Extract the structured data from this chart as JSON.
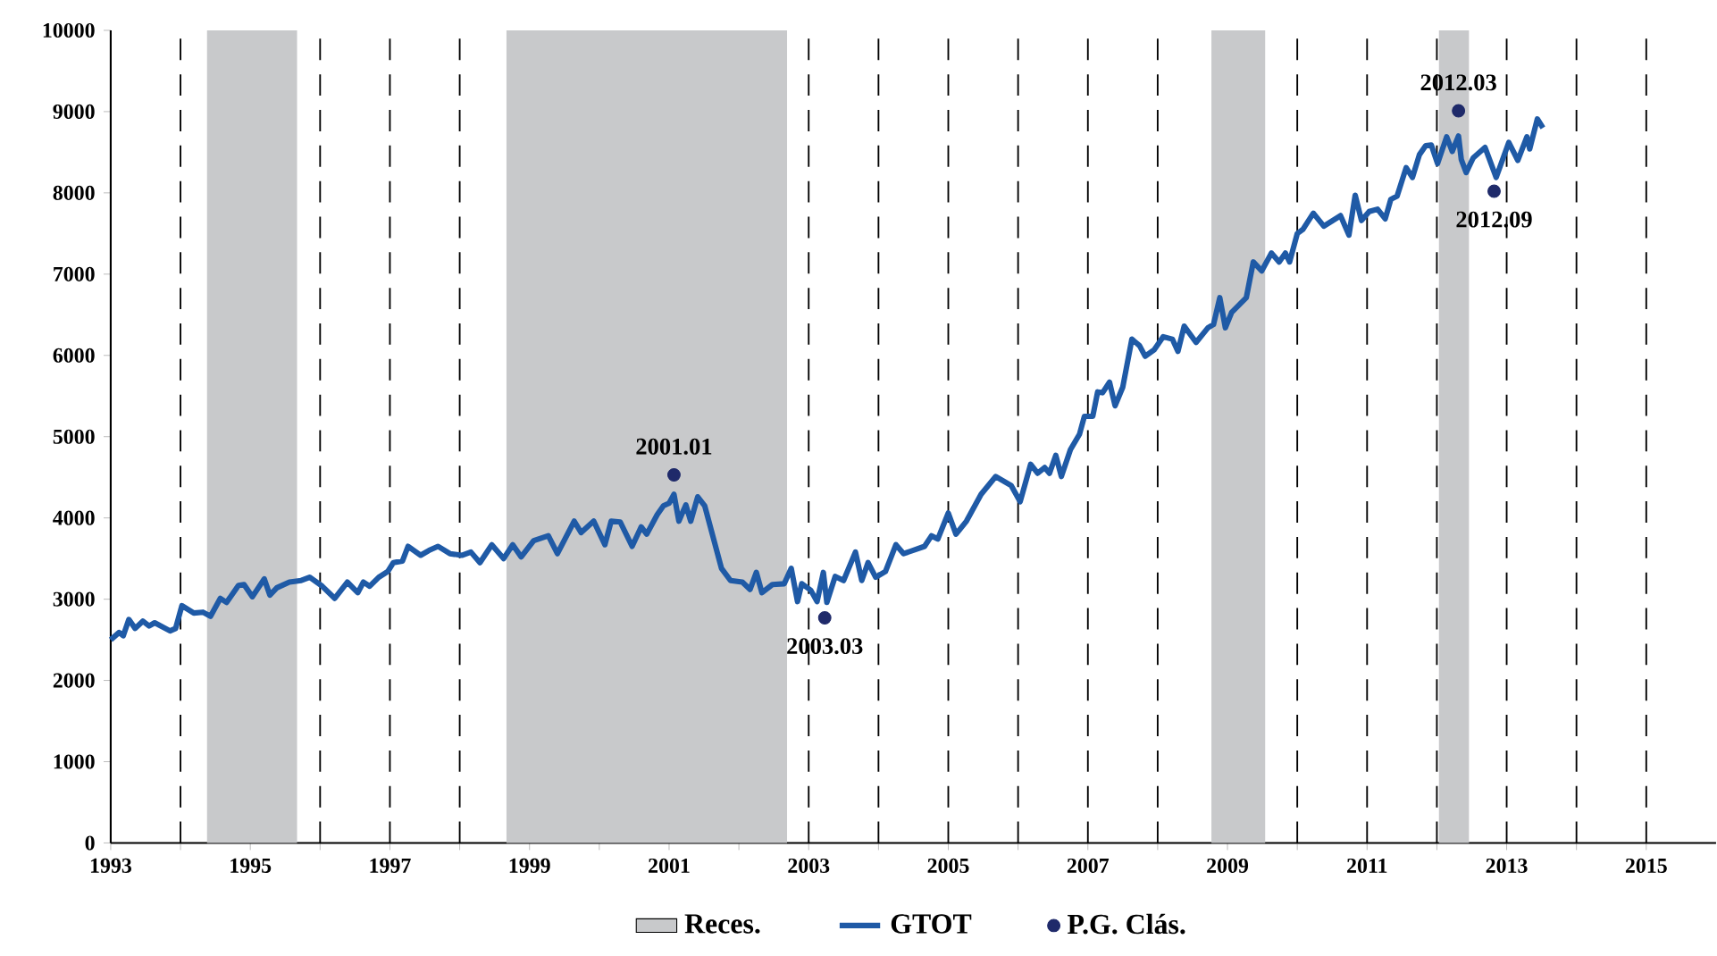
{
  "chart_data": {
    "type": "line",
    "xlim": [
      1993,
      2016
    ],
    "ylim": [
      0,
      10000
    ],
    "xticks": [
      1993,
      {
        "value": 1994,
        "label": null
      },
      1995,
      {
        "value": 1996,
        "label": null
      },
      1997,
      {
        "value": 1998,
        "label": null
      },
      1999,
      {
        "value": 2000,
        "label": null
      },
      2001,
      {
        "value": 2002,
        "label": null
      },
      2003,
      {
        "value": 2004,
        "label": null
      },
      2005,
      {
        "value": 2006,
        "label": null
      },
      2007,
      {
        "value": 2008,
        "label": null
      },
      2009,
      {
        "value": 2010,
        "label": null
      },
      2011,
      {
        "value": 2012,
        "label": null
      },
      2013,
      {
        "value": 2014,
        "label": null
      },
      2015
    ],
    "yticks": [
      0,
      1000,
      2000,
      3000,
      4000,
      5000,
      6000,
      7000,
      8000,
      9000,
      10000
    ],
    "grid": "x",
    "legend": "bottom",
    "bands": [
      {
        "axis": "x",
        "from": 1994.38,
        "to": 1995.67,
        "label": "Reces.",
        "color": "#c8c9cb"
      },
      {
        "axis": "x",
        "from": 1998.67,
        "to": 2002.69,
        "color": "#c8c9cb"
      },
      {
        "axis": "x",
        "from": 2008.77,
        "to": 2009.54,
        "color": "#c8c9cb"
      },
      {
        "axis": "x",
        "from": 2012.03,
        "to": 2012.46,
        "color": "#c8c9cb"
      }
    ],
    "series": [
      {
        "name": "GTOT",
        "color": "#1f5aa6",
        "x": [
          1993.0,
          1993.12,
          1993.18,
          1993.26,
          1993.35,
          1993.46,
          1993.55,
          1993.63,
          1993.85,
          1993.93,
          1994.02,
          1994.19,
          1994.32,
          1994.43,
          1994.57,
          1994.66,
          1994.83,
          1994.91,
          1995.03,
          1995.2,
          1995.28,
          1995.38,
          1995.56,
          1995.73,
          1995.85,
          1996.03,
          1996.21,
          1996.39,
          1996.54,
          1996.62,
          1996.71,
          1996.84,
          1996.97,
          1997.05,
          1997.18,
          1997.26,
          1997.44,
          1997.56,
          1997.69,
          1997.86,
          1998.03,
          1998.16,
          1998.29,
          1998.46,
          1998.63,
          1998.76,
          1998.88,
          1999.06,
          1999.27,
          1999.4,
          1999.64,
          1999.74,
          1999.92,
          2000.08,
          2000.17,
          2000.3,
          2000.47,
          2000.6,
          2000.68,
          2000.83,
          2000.92,
          2001.0,
          2001.07,
          2001.14,
          2001.24,
          2001.31,
          2001.41,
          2001.51,
          2001.75,
          2001.88,
          2002.05,
          2002.16,
          2002.25,
          2002.33,
          2002.48,
          2002.65,
          2002.75,
          2002.84,
          2002.9,
          2003.03,
          2003.12,
          2003.21,
          2003.26,
          2003.38,
          2003.5,
          2003.67,
          2003.76,
          2003.85,
          2003.96,
          2004.1,
          2004.25,
          2004.36,
          2004.66,
          2004.76,
          2004.85,
          2005.0,
          2005.11,
          2005.26,
          2005.47,
          2005.68,
          2005.9,
          2006.03,
          2006.18,
          2006.28,
          2006.38,
          2006.45,
          2006.54,
          2006.62,
          2006.75,
          2006.88,
          2006.95,
          2007.07,
          2007.14,
          2007.21,
          2007.31,
          2007.39,
          2007.5,
          2007.63,
          2007.74,
          2007.82,
          2007.95,
          2008.08,
          2008.21,
          2008.29,
          2008.38,
          2008.55,
          2008.72,
          2008.8,
          2008.89,
          2008.97,
          2009.06,
          2009.27,
          2009.37,
          2009.49,
          2009.63,
          2009.74,
          2009.83,
          2009.89,
          2010.0,
          2010.08,
          2010.23,
          2010.38,
          2010.62,
          2010.74,
          2010.83,
          2010.92,
          2011.03,
          2011.15,
          2011.26,
          2011.34,
          2011.43,
          2011.56,
          2011.65,
          2011.75,
          2011.84,
          2011.92,
          2012.01,
          2012.14,
          2012.22,
          2012.31,
          2012.35,
          2012.42,
          2012.52,
          2012.69,
          2012.85,
          2013.03,
          2013.16,
          2013.29,
          2013.33,
          2013.44,
          2013.52
        ],
        "values": [
          2500,
          2590,
          2550,
          2750,
          2640,
          2730,
          2670,
          2710,
          2610,
          2640,
          2920,
          2830,
          2840,
          2790,
          3010,
          2960,
          3170,
          3180,
          3030,
          3250,
          3050,
          3140,
          3210,
          3230,
          3270,
          3160,
          3010,
          3210,
          3080,
          3210,
          3160,
          3270,
          3340,
          3450,
          3470,
          3650,
          3540,
          3600,
          3650,
          3560,
          3540,
          3580,
          3450,
          3670,
          3500,
          3670,
          3520,
          3720,
          3780,
          3560,
          3960,
          3820,
          3960,
          3670,
          3960,
          3950,
          3650,
          3890,
          3800,
          4040,
          4150,
          4180,
          4290,
          3960,
          4160,
          3960,
          4260,
          4150,
          3380,
          3230,
          3210,
          3120,
          3330,
          3080,
          3180,
          3190,
          3380,
          2970,
          3190,
          3110,
          2970,
          3330,
          2960,
          3280,
          3230,
          3580,
          3230,
          3450,
          3270,
          3340,
          3670,
          3560,
          3650,
          3780,
          3740,
          4060,
          3800,
          3960,
          4290,
          4510,
          4400,
          4200,
          4660,
          4550,
          4620,
          4550,
          4770,
          4510,
          4840,
          5030,
          5250,
          5250,
          5550,
          5540,
          5670,
          5380,
          5610,
          6200,
          6120,
          5990,
          6070,
          6230,
          6200,
          6050,
          6360,
          6160,
          6340,
          6380,
          6710,
          6340,
          6530,
          6710,
          7150,
          7040,
          7260,
          7150,
          7260,
          7150,
          7500,
          7550,
          7750,
          7590,
          7720,
          7480,
          7970,
          7660,
          7770,
          7800,
          7680,
          7920,
          7960,
          8310,
          8190,
          8470,
          8580,
          8590,
          8360,
          8690,
          8510,
          8700,
          8410,
          8250,
          8430,
          8560,
          8190,
          8620,
          8400,
          8690,
          8540,
          8910,
          8800
        ]
      },
      {
        "name": "P.G. Clás.",
        "type": "scatter",
        "marker": "circle",
        "color": "#1f2a6a",
        "x": [
          2001.07,
          2003.23,
          2012.31,
          2012.82
        ],
        "values": [
          4530,
          2770,
          9010,
          8020
        ]
      }
    ],
    "annotations": [
      {
        "text": "2001.01",
        "x": 2001.07,
        "y": 4530
      },
      {
        "text": "2003.03",
        "x": 2003.23,
        "y": 2770
      },
      {
        "text": "2012.03",
        "x": 2012.31,
        "y": 9010
      },
      {
        "text": "2012.09",
        "x": 2012.82,
        "y": 8020
      }
    ]
  }
}
